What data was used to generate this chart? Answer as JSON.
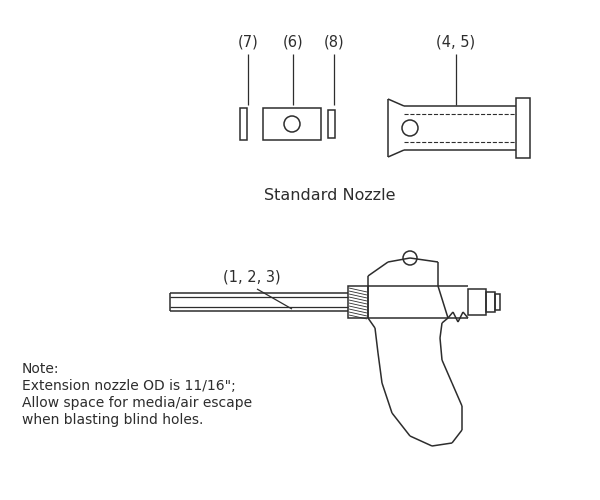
{
  "bg_color": "#ffffff",
  "line_color": "#2d2d2d",
  "text_color": "#2d2d2d",
  "title": "Standard Nozzle",
  "note_line1": "Note:",
  "note_line2": "Extension nozzle OD is 11/16\";",
  "note_line3": "Allow space for media/air escape",
  "note_line4": "when blasting blind holes.",
  "label_7": "(7)",
  "label_6": "(6)",
  "label_8": "(8)",
  "label_45": "(4, 5)",
  "label_123": "(1, 2, 3)"
}
